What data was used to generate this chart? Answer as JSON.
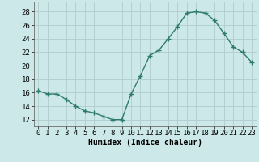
{
  "x": [
    0,
    1,
    2,
    3,
    4,
    5,
    6,
    7,
    8,
    9,
    10,
    11,
    12,
    13,
    14,
    15,
    16,
    17,
    18,
    19,
    20,
    21,
    22,
    23
  ],
  "y": [
    16.3,
    15.8,
    15.8,
    15.0,
    14.0,
    13.3,
    13.0,
    12.5,
    12.0,
    12.0,
    15.8,
    18.5,
    21.5,
    22.3,
    24.0,
    25.8,
    27.8,
    28.0,
    27.8,
    26.7,
    24.8,
    22.8,
    22.0,
    20.5
  ],
  "line_color": "#2e7b6e",
  "marker_color": "#2e7b6e",
  "bg_color": "#cce8e8",
  "grid_color": "#b0cccc",
  "xlabel": "Humidex (Indice chaleur)",
  "yticks": [
    12,
    14,
    16,
    18,
    20,
    22,
    24,
    26,
    28
  ],
  "xlim": [
    -0.5,
    23.5
  ],
  "ylim": [
    11.0,
    29.5
  ],
  "xlabel_fontsize": 7,
  "tick_fontsize": 6.5
}
